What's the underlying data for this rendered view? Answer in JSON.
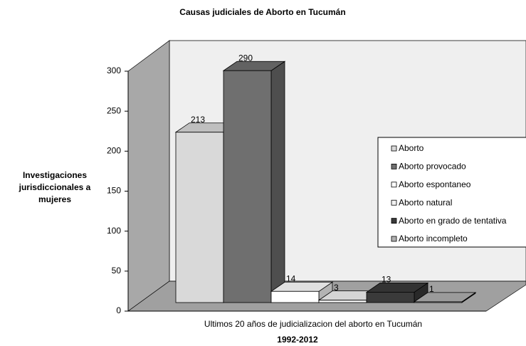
{
  "chart_data": {
    "type": "bar3d",
    "title": "Causas judiciales de Aborto en Tucumán",
    "ylabel": "Investigaciones jurisdiccionales a mujeres",
    "categories": [
      "Ultimos 20 años de judicializacion del aborto en Tucumán"
    ],
    "xlabel": "1992-2012",
    "ylim": [
      0,
      300
    ],
    "yticks": [
      0,
      50,
      100,
      150,
      200,
      250,
      300
    ],
    "legend": "right",
    "series": [
      {
        "name": "Aborto",
        "color": "#d9d9d9",
        "values": [
          213
        ]
      },
      {
        "name": "Aborto provocado",
        "color": "#6f6f6f",
        "values": [
          290
        ]
      },
      {
        "name": "Aborto espontaneo",
        "color": "#ffffff",
        "values": [
          14
        ]
      },
      {
        "name": "Aborto natural",
        "color": "#f2f2f2",
        "values": [
          3
        ]
      },
      {
        "name": "Aborto en grado de tentativa",
        "color": "#3a3a3a",
        "values": [
          13
        ]
      },
      {
        "name": "Aborto incompleto",
        "color": "#b0b0b0",
        "values": [
          1
        ]
      }
    ]
  }
}
